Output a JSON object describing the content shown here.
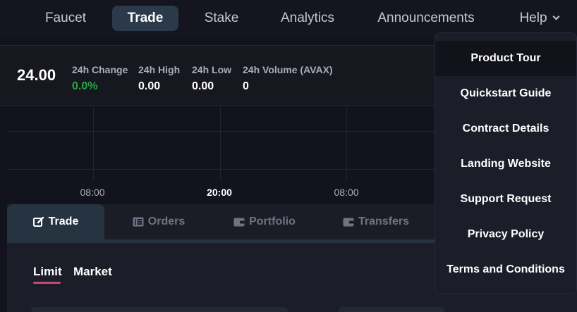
{
  "nav": {
    "items": [
      {
        "label": "Faucet"
      },
      {
        "label": "Trade"
      },
      {
        "label": "Stake"
      },
      {
        "label": "Analytics"
      },
      {
        "label": "Announcements"
      },
      {
        "label": "Help"
      }
    ],
    "active": "Trade"
  },
  "stats": {
    "price": "24.00",
    "change_label": "24h Change",
    "change_value": "0.0%",
    "high_label": "24h High",
    "high_value": "0.00",
    "low_label": "24h Low",
    "low_value": "0.00",
    "volume_label": "24h Volume (AVAX)",
    "volume_value": "0"
  },
  "chart": {
    "ticks": [
      {
        "label": "08:00"
      },
      {
        "label": "20:00"
      },
      {
        "label": "08:00"
      }
    ]
  },
  "tabs": [
    {
      "label": "Trade"
    },
    {
      "label": "Orders"
    },
    {
      "label": "Portfolio"
    },
    {
      "label": "Transfers"
    }
  ],
  "order_types": {
    "limit": "Limit",
    "market": "Market",
    "selected": "Limit"
  },
  "help_menu": {
    "items": [
      {
        "label": "Product Tour"
      },
      {
        "label": "Quickstart Guide"
      },
      {
        "label": "Contract Details"
      },
      {
        "label": "Landing Website"
      },
      {
        "label": "Support Request"
      },
      {
        "label": "Privacy Policy"
      },
      {
        "label": "Terms and Conditions"
      }
    ],
    "highlighted": "Product Tour"
  },
  "colors": {
    "positive": "#28a745",
    "active_tab": "#263442",
    "accent_underline": "#c8467a",
    "background": "#12131c"
  }
}
